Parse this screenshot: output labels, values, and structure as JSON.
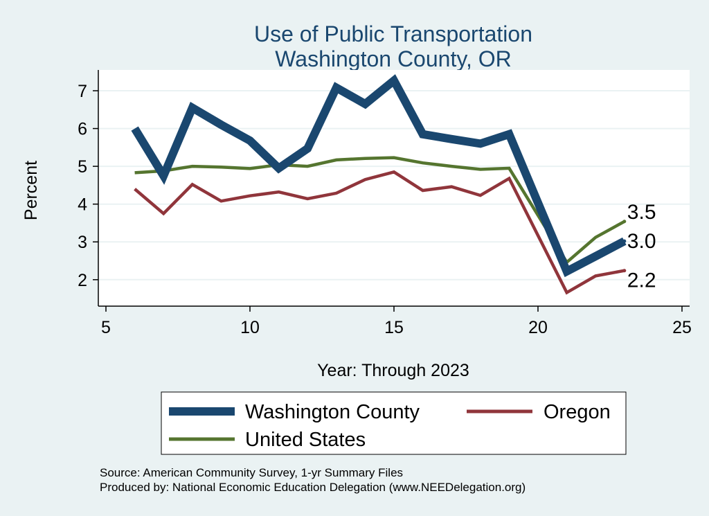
{
  "chart_data": {
    "type": "line",
    "title": "Use of Public Transportation",
    "subtitle": "Washington County, OR",
    "xlabel": "Year: Through 2023",
    "ylabel": "Percent",
    "xlim": [
      5,
      25
    ],
    "ylim": [
      1.3,
      7.55
    ],
    "x_ticks": [
      5,
      10,
      15,
      20,
      25
    ],
    "y_ticks": [
      2,
      3,
      4,
      5,
      6,
      7
    ],
    "grid": "horizontal",
    "legend_position": "bottom",
    "series": [
      {
        "name": "Washington County",
        "color": "#1a476f",
        "x": [
          6,
          7,
          8,
          9,
          10,
          11,
          12,
          13,
          14,
          15,
          16,
          17,
          18,
          19,
          21,
          22,
          23
        ],
        "values": [
          6.0,
          4.75,
          6.55,
          6.1,
          5.68,
          4.95,
          5.47,
          7.08,
          6.65,
          7.27,
          5.85,
          5.72,
          5.6,
          5.85,
          2.22,
          2.62,
          3.02
        ],
        "end_label": "3.0"
      },
      {
        "name": "Oregon",
        "color": "#90353b",
        "x": [
          6,
          7,
          8,
          9,
          10,
          11,
          12,
          13,
          14,
          15,
          16,
          17,
          18,
          19,
          21,
          22,
          23
        ],
        "values": [
          4.4,
          3.75,
          4.52,
          4.08,
          4.22,
          4.32,
          4.14,
          4.29,
          4.65,
          4.85,
          4.36,
          4.46,
          4.23,
          4.68,
          1.66,
          2.1,
          2.24
        ],
        "end_label": "2.2"
      },
      {
        "name": "United States",
        "color": "#55752f",
        "x": [
          6,
          7,
          8,
          9,
          10,
          11,
          12,
          13,
          14,
          15,
          16,
          17,
          18,
          19,
          21,
          22,
          23
        ],
        "values": [
          4.83,
          4.88,
          5.0,
          4.98,
          4.94,
          5.04,
          5.0,
          5.17,
          5.21,
          5.23,
          5.09,
          5.0,
          4.92,
          4.95,
          2.46,
          3.12,
          3.54
        ],
        "end_label": "3.5"
      }
    ]
  },
  "notes": [
    "Source: American Community Survey, 1-yr Summary Files",
    "Produced by: National Economic Education Delegation (www.NEEDelegation.org)"
  ]
}
